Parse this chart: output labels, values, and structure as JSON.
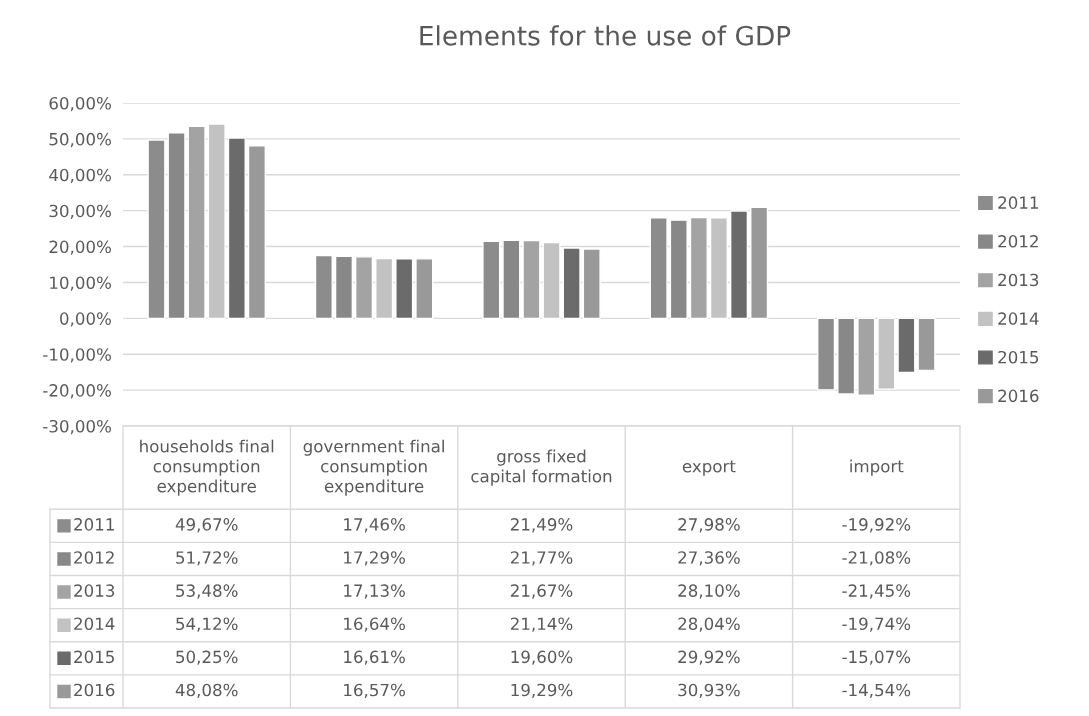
{
  "chart_data": {
    "type": "bar",
    "title": "Elements for the use of GDP",
    "categories": [
      "households final consumption expenditure",
      "government final consumption expenditure",
      "gross fixed capital formation",
      "export",
      "import"
    ],
    "series": [
      {
        "name": "2011",
        "color": "#8c8c8c",
        "values": [
          49.67,
          17.46,
          21.49,
          27.98,
          -19.92
        ],
        "value_labels": [
          "49,67%",
          "17,46%",
          "21,49%",
          "27,98%",
          "-19,92%"
        ]
      },
      {
        "name": "2012",
        "color": "#888888",
        "values": [
          51.72,
          17.29,
          21.77,
          27.36,
          -21.08
        ],
        "value_labels": [
          "51,72%",
          "17,29%",
          "21,77%",
          "27,36%",
          "-21,08%"
        ]
      },
      {
        "name": "2013",
        "color": "#a3a3a3",
        "values": [
          53.48,
          17.13,
          21.67,
          28.1,
          -21.45
        ],
        "value_labels": [
          "53,48%",
          "17,13%",
          "21,67%",
          "28,10%",
          "-21,45%"
        ]
      },
      {
        "name": "2014",
        "color": "#c2c2c2",
        "values": [
          54.12,
          16.64,
          21.14,
          28.04,
          -19.74
        ],
        "value_labels": [
          "54,12%",
          "16,64%",
          "21,14%",
          "28,04%",
          "-19,74%"
        ]
      },
      {
        "name": "2015",
        "color": "#6b6b6b",
        "values": [
          50.25,
          16.61,
          19.6,
          29.92,
          -15.07
        ],
        "value_labels": [
          "50,25%",
          "16,61%",
          "19,60%",
          "29,92%",
          "-15,07%"
        ]
      },
      {
        "name": "2016",
        "color": "#999999",
        "values": [
          48.08,
          16.57,
          19.29,
          30.93,
          -14.54
        ],
        "value_labels": [
          "48,08%",
          "16,57%",
          "19,29%",
          "30,93%",
          "-14,54%"
        ]
      }
    ],
    "ylim": [
      -30,
      60
    ],
    "yticks": [
      {
        "value": -30,
        "label": "-30,00%"
      },
      {
        "value": -20,
        "label": "-20,00%"
      },
      {
        "value": -10,
        "label": "-10,00%"
      },
      {
        "value": 0,
        "label": "0,00%"
      },
      {
        "value": 10,
        "label": "10,00%"
      },
      {
        "value": 20,
        "label": "20,00%"
      },
      {
        "value": 30,
        "label": "30,00%"
      },
      {
        "value": 40,
        "label": "40,00%"
      },
      {
        "value": 50,
        "label": "50,00%"
      },
      {
        "value": 60,
        "label": "60,00%"
      }
    ],
    "grid": "y",
    "legend": "right"
  }
}
